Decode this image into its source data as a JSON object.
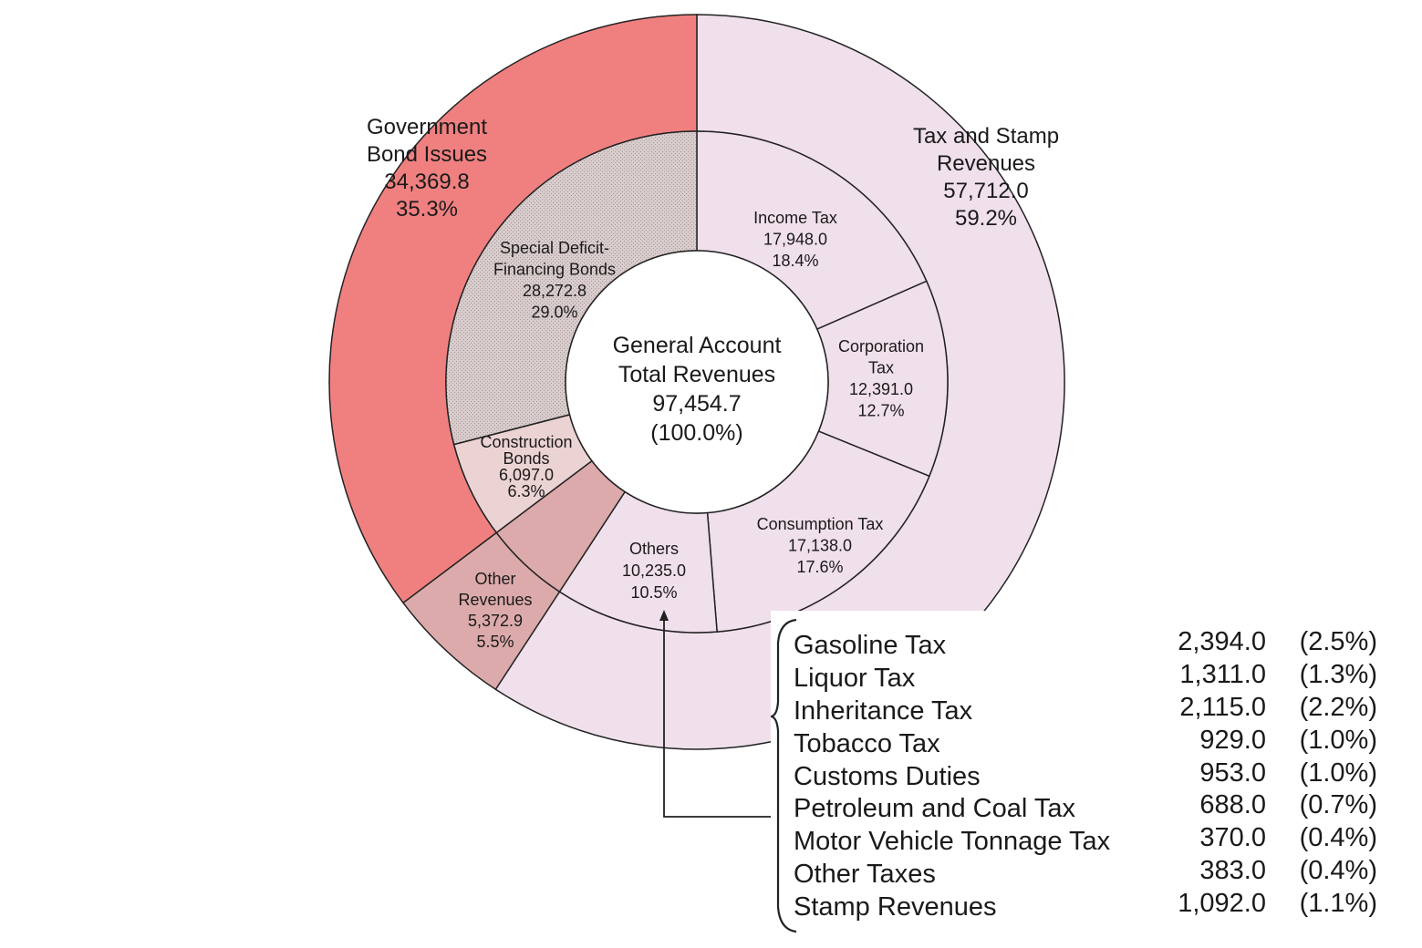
{
  "chart_data": {
    "type": "pie",
    "title": "",
    "center_label": [
      "General Account",
      "Total Revenues",
      "97,454.7",
      "(100.0%)"
    ],
    "total": 97454.7,
    "outer_ring": [
      {
        "label_lines": [
          "Tax and Stamp",
          "Revenues",
          "57,712.0",
          "59.2%"
        ],
        "value": 57712.0,
        "percent": 59.2,
        "color": "#f0e0eb"
      },
      {
        "label_lines": [
          "Other",
          "Revenues",
          "5,372.9",
          "5.5%"
        ],
        "value": 5372.9,
        "percent": 5.5,
        "color": "#dcaaab"
      },
      {
        "label_lines": [
          "Government",
          "Bond Issues",
          "34,369.8",
          "35.3%"
        ],
        "value": 34369.8,
        "percent": 35.3,
        "color": "#f08080"
      }
    ],
    "inner_ring": [
      {
        "label_lines": [
          "Income Tax",
          "17,948.0",
          "18.4%"
        ],
        "value": 17948.0,
        "percent": 18.4,
        "color": "#f0e0eb"
      },
      {
        "label_lines": [
          "Corporation",
          "Tax",
          "12,391.0",
          "12.7%"
        ],
        "value": 12391.0,
        "percent": 12.7,
        "color": "#f0e0eb"
      },
      {
        "label_lines": [
          "Consumption Tax",
          "17,138.0",
          "17.6%"
        ],
        "value": 17138.0,
        "percent": 17.6,
        "color": "#f0e0eb"
      },
      {
        "label_lines": [
          "Others",
          "10,235.0",
          "10.5%"
        ],
        "value": 10235.0,
        "percent": 10.5,
        "color": "#f0e0eb"
      },
      {
        "label_lines": [],
        "value": 5372.9,
        "percent": 5.5,
        "color": "#dcaaab"
      },
      {
        "label_lines": [
          "Construction",
          "Bonds",
          "6,097.0",
          "6.3%"
        ],
        "value": 6097.0,
        "percent": 6.3,
        "color": "#ecd3d3"
      },
      {
        "label_lines": [
          "Special Deficit-",
          "Financing Bonds",
          "28,272.8",
          "29.0%"
        ],
        "value": 28272.8,
        "percent": 29.0,
        "color": "#d5c9c9"
      }
    ],
    "others_breakdown": [
      {
        "name": "Gasoline Tax",
        "value": "2,394.0",
        "percent": "(2.5%)"
      },
      {
        "name": "Liquor Tax",
        "value": "1,311.0",
        "percent": "(1.3%)"
      },
      {
        "name": "Inheritance Tax",
        "value": "2,115.0",
        "percent": "(2.2%)"
      },
      {
        "name": "Tobacco Tax",
        "value": "929.0",
        "percent": "(1.0%)"
      },
      {
        "name": "Customs Duties",
        "value": "953.0",
        "percent": "(1.0%)"
      },
      {
        "name": "Petroleum and Coal Tax",
        "value": "688.0",
        "percent": "(0.7%)"
      },
      {
        "name": "Motor Vehicle Tonnage Tax",
        "value": "370.0",
        "percent": "(0.4%)"
      },
      {
        "name": "Other Taxes",
        "value": "383.0",
        "percent": "(0.4%)"
      },
      {
        "name": "Stamp Revenues",
        "value": "1,092.0",
        "percent": "(1.1%)"
      }
    ]
  }
}
